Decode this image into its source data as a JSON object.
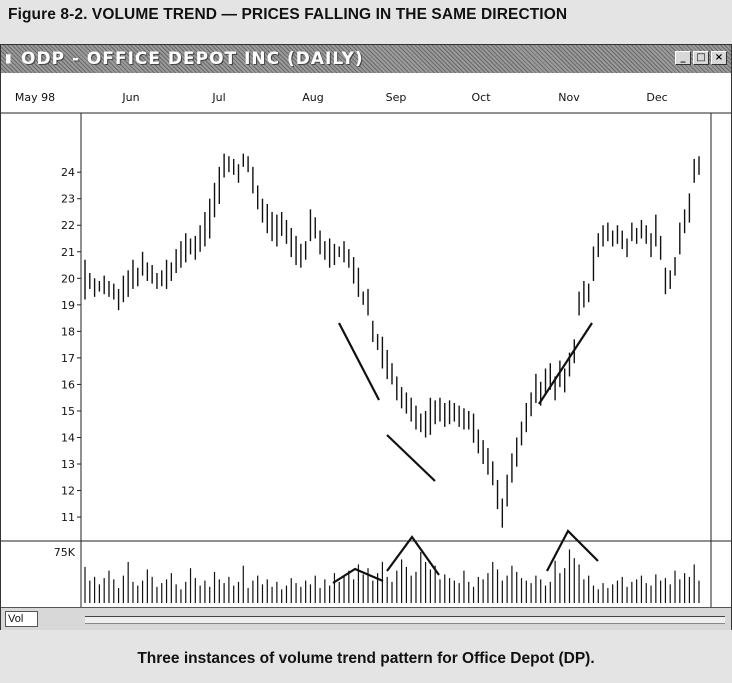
{
  "figure_title": "Figure 8-2. VOLUME TREND — PRICES FALLING IN THE SAME DIRECTION",
  "window": {
    "title": "ODP - OFFICE DEPOT INC (DAILY)",
    "icon": "app-icon",
    "buttons": [
      {
        "name": "minimize-button",
        "icon": "minimize-icon",
        "glyph": "_"
      },
      {
        "name": "maximize-button",
        "icon": "maximize-icon",
        "glyph": "□"
      },
      {
        "name": "close-button",
        "icon": "close-icon",
        "glyph": "×"
      }
    ]
  },
  "status": {
    "tab_label": "Vol"
  },
  "caption": "Three instances of volume trend pattern for Office Depot (DP).",
  "chart_data": {
    "type": "bar",
    "title": "ODP - OFFICE DEPOT INC (DAILY)",
    "x_tick_labels": [
      "May 98",
      "Jun",
      "Jul",
      "Aug",
      "Sep",
      "Oct",
      "Nov",
      "Dec"
    ],
    "y_tick_labels": [
      11,
      12,
      13,
      14,
      15,
      16,
      17,
      18,
      19,
      20,
      21,
      22,
      23,
      24
    ],
    "ylim": [
      10.4,
      25.1
    ],
    "volume_label": "75K",
    "volume_ylim": [
      0,
      75000
    ],
    "price_series": {
      "name": "price",
      "values": [
        [
          19.2,
          20.7
        ],
        [
          19.6,
          20.2
        ],
        [
          19.3,
          20.0
        ],
        [
          19.5,
          19.9
        ],
        [
          19.4,
          20.1
        ],
        [
          19.3,
          19.9
        ],
        [
          19.2,
          19.8
        ],
        [
          18.8,
          19.6
        ],
        [
          19.1,
          20.1
        ],
        [
          19.3,
          20.3
        ],
        [
          19.6,
          20.7
        ],
        [
          19.7,
          20.4
        ],
        [
          20.1,
          21.0
        ],
        [
          19.9,
          20.6
        ],
        [
          19.8,
          20.5
        ],
        [
          19.6,
          20.2
        ],
        [
          19.7,
          20.3
        ],
        [
          19.6,
          20.7
        ],
        [
          19.9,
          20.6
        ],
        [
          20.2,
          21.1
        ],
        [
          20.4,
          21.4
        ],
        [
          20.6,
          21.7
        ],
        [
          20.9,
          21.5
        ],
        [
          20.7,
          21.6
        ],
        [
          21.0,
          22.0
        ],
        [
          21.2,
          22.5
        ],
        [
          21.5,
          23.0
        ],
        [
          22.3,
          23.6
        ],
        [
          22.8,
          24.2
        ],
        [
          23.8,
          24.7
        ],
        [
          24.0,
          24.6
        ],
        [
          23.9,
          24.5
        ],
        [
          23.6,
          24.3
        ],
        [
          24.2,
          24.7
        ],
        [
          24.0,
          24.6
        ],
        [
          23.2,
          24.2
        ],
        [
          22.6,
          23.5
        ],
        [
          22.1,
          23.0
        ],
        [
          21.7,
          22.8
        ],
        [
          21.4,
          22.5
        ],
        [
          21.2,
          22.4
        ],
        [
          21.6,
          22.5
        ],
        [
          21.3,
          22.2
        ],
        [
          20.8,
          21.9
        ],
        [
          20.5,
          21.6
        ],
        [
          20.4,
          21.3
        ],
        [
          20.7,
          21.4
        ],
        [
          21.4,
          22.6
        ],
        [
          21.5,
          22.3
        ],
        [
          20.9,
          21.8
        ],
        [
          20.7,
          21.4
        ],
        [
          20.4,
          21.5
        ],
        [
          20.5,
          21.3
        ],
        [
          20.8,
          21.2
        ],
        [
          20.6,
          21.4
        ],
        [
          20.4,
          21.1
        ],
        [
          19.8,
          20.8
        ],
        [
          19.3,
          20.4
        ],
        [
          19.0,
          19.5
        ],
        [
          18.6,
          19.6
        ],
        [
          17.6,
          18.4
        ],
        [
          17.3,
          17.9
        ],
        [
          16.6,
          17.8
        ],
        [
          16.2,
          17.3
        ],
        [
          16.0,
          16.8
        ],
        [
          15.4,
          16.3
        ],
        [
          15.1,
          15.9
        ],
        [
          14.9,
          15.7
        ],
        [
          14.6,
          15.5
        ],
        [
          14.3,
          15.2
        ],
        [
          14.2,
          14.9
        ],
        [
          14.0,
          15.0
        ],
        [
          14.1,
          15.5
        ],
        [
          14.5,
          15.4
        ],
        [
          14.6,
          15.5
        ],
        [
          14.4,
          15.3
        ],
        [
          14.5,
          15.4
        ],
        [
          14.6,
          15.3
        ],
        [
          14.4,
          15.2
        ],
        [
          14.3,
          15.1
        ],
        [
          14.3,
          15.0
        ],
        [
          13.8,
          14.9
        ],
        [
          13.4,
          14.3
        ],
        [
          13.0,
          13.9
        ],
        [
          12.6,
          13.6
        ],
        [
          12.2,
          13.1
        ],
        [
          11.3,
          12.4
        ],
        [
          10.6,
          11.7
        ],
        [
          11.4,
          12.6
        ],
        [
          12.3,
          13.4
        ],
        [
          12.9,
          14.0
        ],
        [
          13.7,
          14.6
        ],
        [
          14.2,
          15.3
        ],
        [
          14.8,
          15.7
        ],
        [
          15.3,
          16.4
        ],
        [
          15.2,
          16.1
        ],
        [
          15.6,
          16.6
        ],
        [
          15.8,
          16.8
        ],
        [
          15.4,
          16.3
        ],
        [
          15.9,
          16.9
        ],
        [
          15.7,
          16.6
        ],
        [
          16.3,
          17.2
        ],
        [
          16.8,
          17.7
        ],
        [
          18.6,
          19.5
        ],
        [
          18.9,
          19.9
        ],
        [
          19.1,
          19.8
        ],
        [
          19.9,
          21.2
        ],
        [
          20.8,
          21.7
        ],
        [
          21.2,
          22.0
        ],
        [
          21.4,
          22.1
        ],
        [
          21.2,
          21.8
        ],
        [
          21.3,
          22.0
        ],
        [
          21.1,
          21.8
        ],
        [
          20.8,
          21.5
        ],
        [
          21.4,
          22.1
        ],
        [
          21.3,
          21.9
        ],
        [
          21.5,
          22.2
        ],
        [
          21.3,
          22.0
        ],
        [
          20.8,
          21.7
        ],
        [
          21.2,
          22.4
        ],
        [
          20.7,
          21.6
        ],
        [
          19.4,
          20.4
        ],
        [
          19.6,
          20.3
        ],
        [
          20.1,
          20.8
        ],
        [
          20.9,
          22.1
        ],
        [
          21.7,
          22.6
        ],
        [
          22.1,
          23.2
        ],
        [
          23.6,
          24.5
        ],
        [
          23.9,
          24.6
        ]
      ]
    },
    "volume_series": {
      "name": "Vol",
      "values": [
        29,
        18,
        21,
        15,
        20,
        26,
        19,
        12,
        22,
        33,
        17,
        14,
        18,
        27,
        21,
        13,
        16,
        19,
        24,
        15,
        11,
        17,
        28,
        20,
        14,
        18,
        13,
        25,
        19,
        16,
        21,
        14,
        17,
        30,
        12,
        18,
        22,
        15,
        19,
        13,
        17,
        11,
        14,
        20,
        16,
        13,
        18,
        15,
        22,
        12,
        19,
        14,
        24,
        17,
        21,
        26,
        19,
        31,
        23,
        28,
        18,
        24,
        33,
        21,
        17,
        26,
        35,
        29,
        22,
        25,
        41,
        33,
        27,
        30,
        19,
        23,
        20,
        18,
        16,
        26,
        17,
        13,
        21,
        19,
        24,
        33,
        27,
        18,
        22,
        30,
        25,
        20,
        18,
        16,
        22,
        19,
        14,
        17,
        34,
        24,
        28,
        43,
        36,
        31,
        19,
        22,
        14,
        11,
        16,
        12,
        15,
        18,
        21,
        13,
        17,
        19,
        22,
        16,
        14,
        23,
        18,
        20,
        15,
        26,
        19,
        24,
        21,
        31,
        18
      ]
    },
    "annotations": [
      {
        "pane": "price",
        "type": "trend-line",
        "from": [
          "Sep",
          18.0
        ],
        "to": [
          "Sep",
          15.0
        ]
      },
      {
        "pane": "price",
        "type": "trend-line",
        "from": [
          "Sep",
          13.9
        ],
        "to": [
          "Oct",
          12.1
        ]
      },
      {
        "pane": "price",
        "type": "trend-line",
        "from": [
          "Nov",
          14.9
        ],
        "to": [
          "Nov",
          17.8
        ]
      },
      {
        "pane": "volume",
        "type": "trend-lines",
        "count": 3
      }
    ],
    "grid": false,
    "legend": "none"
  }
}
